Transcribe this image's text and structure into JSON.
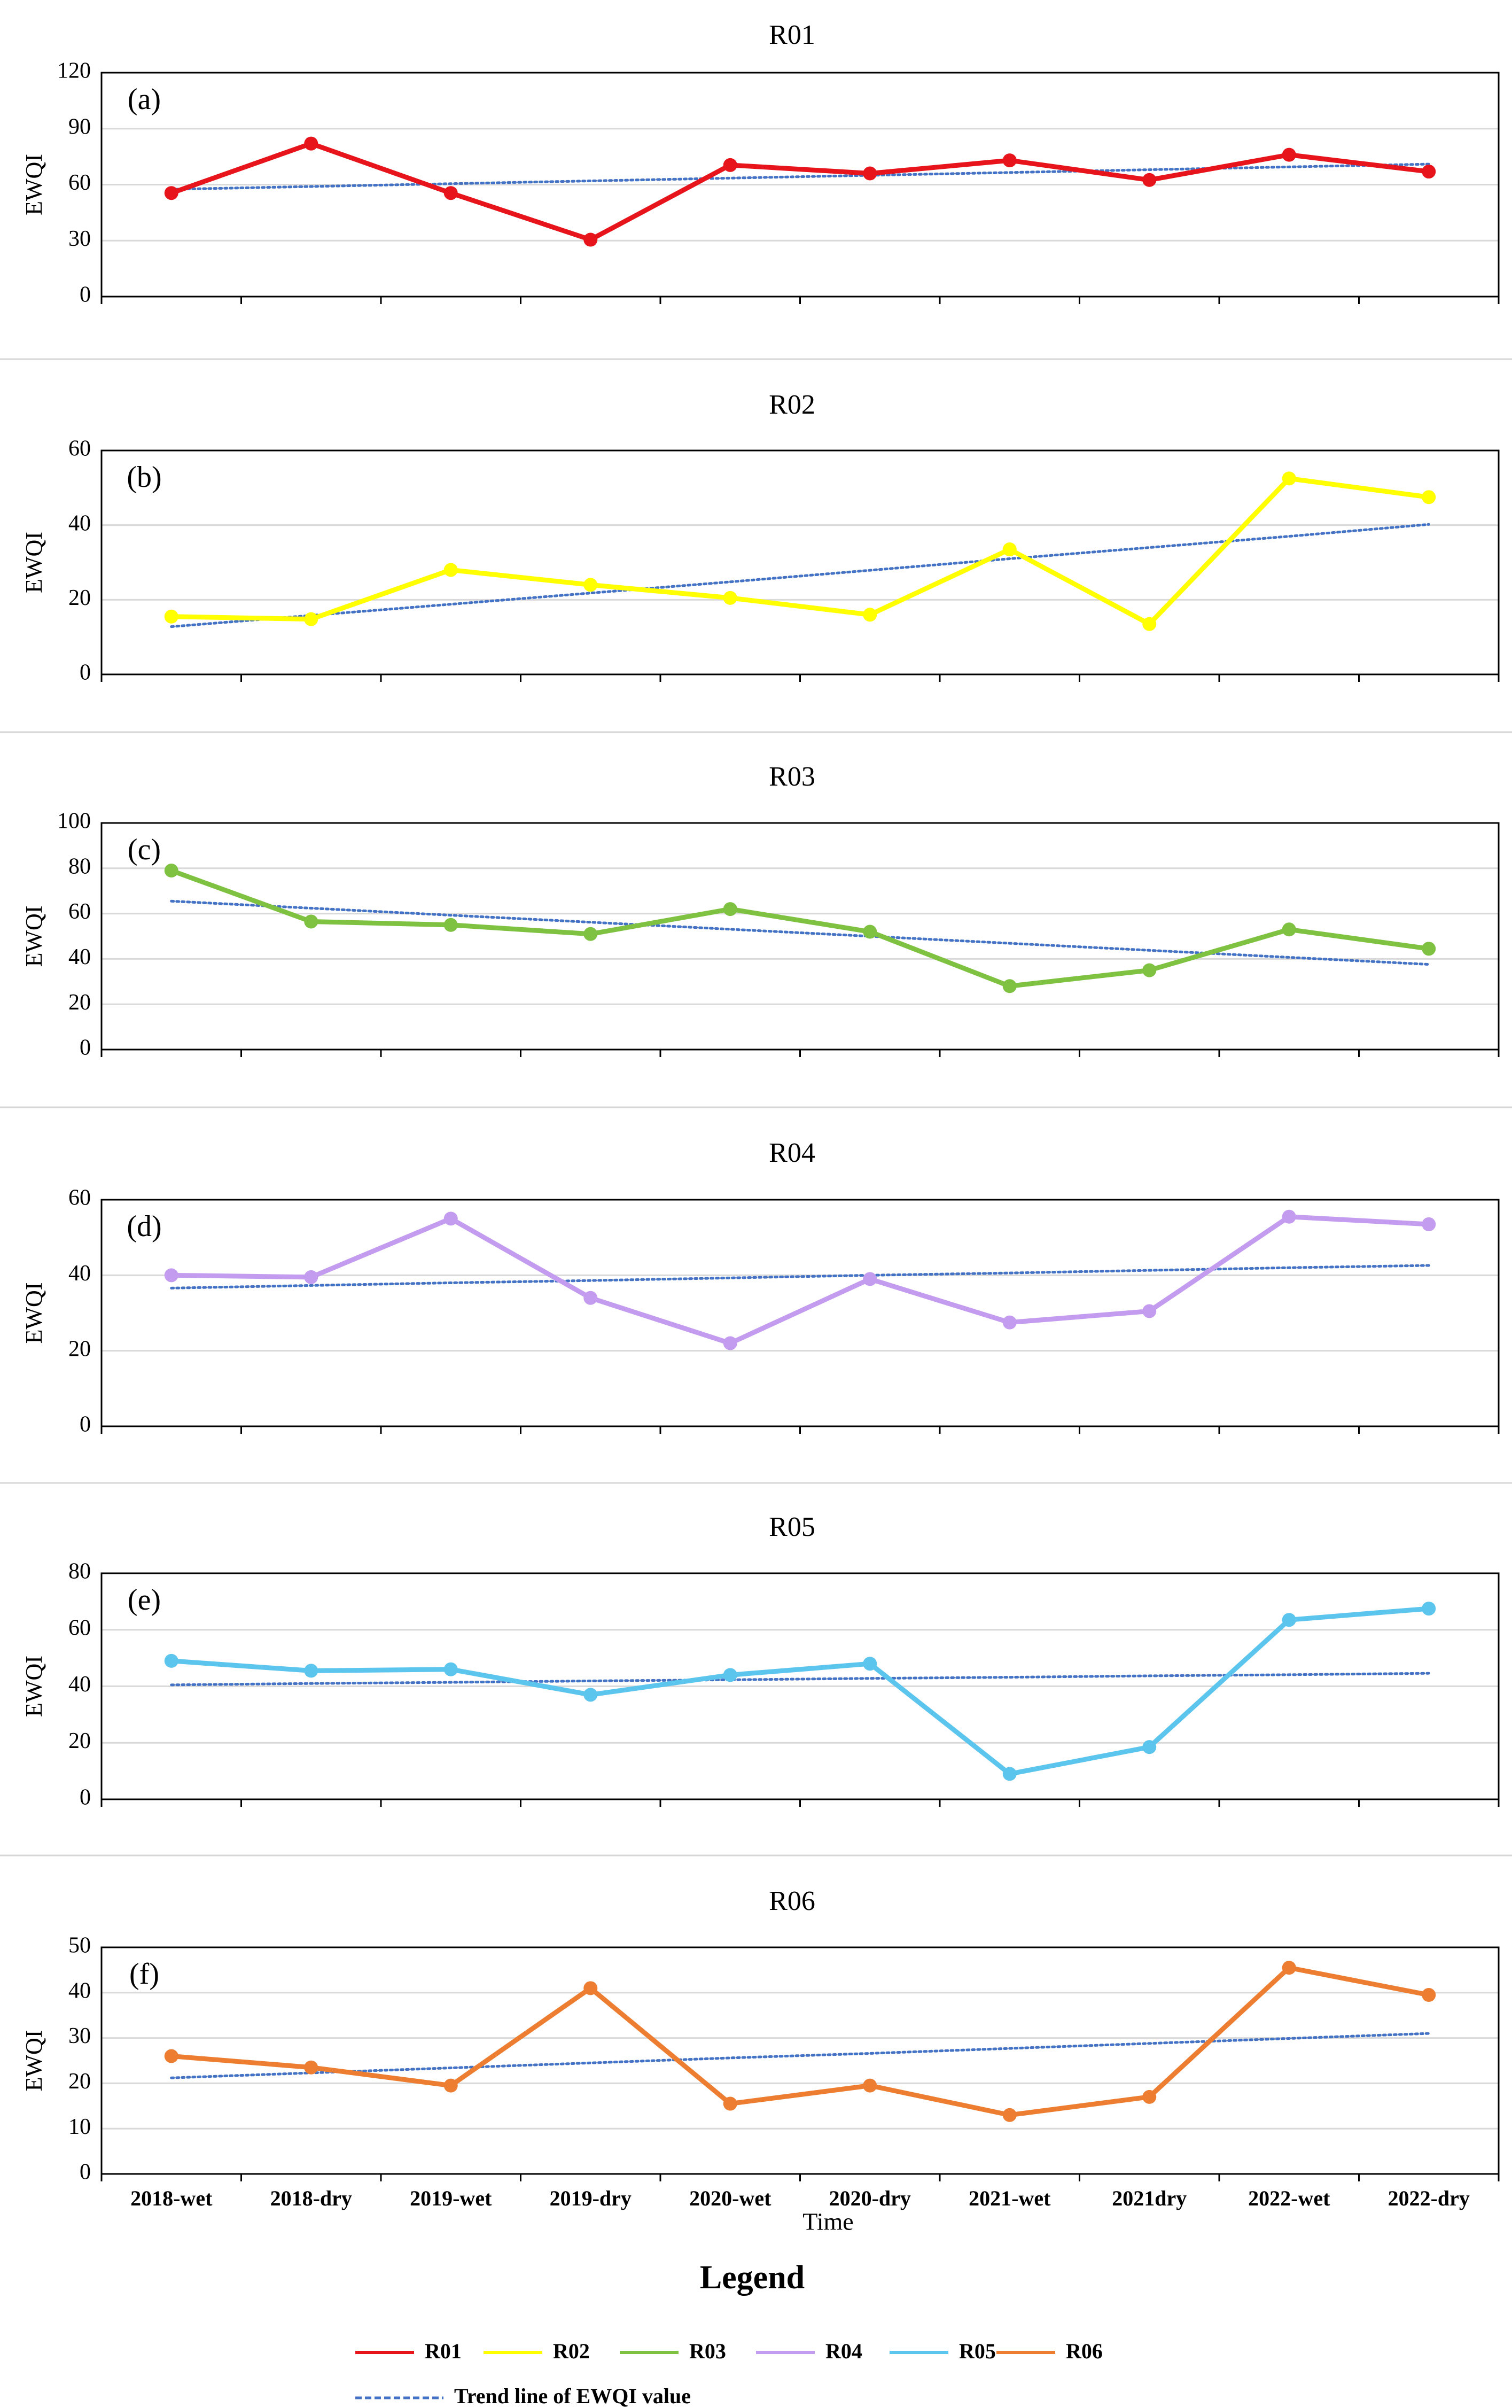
{
  "chart_data": [
    {
      "type": "line",
      "title": "R01",
      "panel_label": "(a)",
      "ylabel": "EWQI",
      "xlabel": "",
      "ylim": [
        0,
        120
      ],
      "yticks": [
        "0",
        "30",
        "60",
        "90",
        "120"
      ],
      "categories": [
        "2018-wet",
        "2018-dry",
        "2019-wet",
        "2019-dry",
        "2020-wet",
        "2020-dry",
        "2021-wet",
        "2021dry",
        "2022-wet",
        "2022-dry"
      ],
      "series": [
        {
          "name": "R01",
          "color": "#e8141b",
          "values": [
            55.5,
            82,
            55.5,
            30.5,
            70.5,
            66,
            73,
            62.5,
            76,
            67
          ]
        },
        {
          "name": "Trend line of EWQI value",
          "color": "#4472c4",
          "values": [
            57.5,
            59.0,
            60.5,
            62.0,
            63.5,
            65.0,
            66.5,
            68.0,
            69.5,
            71.0
          ]
        }
      ]
    },
    {
      "type": "line",
      "title": "R02",
      "panel_label": "(b)",
      "ylabel": "EWQI",
      "xlabel": "",
      "ylim": [
        0,
        60
      ],
      "yticks": [
        "0",
        "20",
        "40",
        "60"
      ],
      "categories": [
        "2018-wet",
        "2018-dry",
        "2019-wet",
        "2019-dry",
        "2020-wet",
        "2020-dry",
        "2021-wet",
        "2021dry",
        "2022-wet",
        "2022-dry"
      ],
      "series": [
        {
          "name": "R02",
          "color": "#ffff00",
          "values": [
            15.5,
            14.8,
            28,
            24,
            20.5,
            16,
            33.5,
            13.5,
            52.5,
            47.5
          ]
        },
        {
          "name": "Trend line of EWQI value",
          "color": "#4472c4",
          "values": [
            12.8,
            15.8,
            18.8,
            21.8,
            24.8,
            27.9,
            31.0,
            34.0,
            37.0,
            40.2
          ]
        }
      ]
    },
    {
      "type": "line",
      "title": "R03",
      "panel_label": "(c)",
      "ylabel": "EWQI",
      "xlabel": "",
      "ylim": [
        0,
        100
      ],
      "yticks": [
        "0",
        "20",
        "40",
        "60",
        "80",
        "100"
      ],
      "categories": [
        "2018-wet",
        "2018-dry",
        "2019-wet",
        "2019-dry",
        "2020-wet",
        "2020-dry",
        "2021-wet",
        "2021dry",
        "2022-wet",
        "2022-dry"
      ],
      "series": [
        {
          "name": "R03",
          "color": "#7fc242",
          "values": [
            79,
            56.5,
            55,
            51,
            62,
            52,
            28,
            35,
            53,
            44.5
          ]
        },
        {
          "name": "Trend line of EWQI value",
          "color": "#4472c4",
          "values": [
            65.5,
            62.4,
            59.3,
            56.2,
            53.1,
            50.0,
            46.9,
            43.8,
            40.7,
            37.6
          ]
        }
      ]
    },
    {
      "type": "line",
      "title": "R04",
      "panel_label": "(d)",
      "ylabel": "EWQI",
      "xlabel": "",
      "ylim": [
        0,
        60
      ],
      "yticks": [
        "0",
        "20",
        "40",
        "60"
      ],
      "categories": [
        "2018-wet",
        "2018-dry",
        "2019-wet",
        "2019-dry",
        "2020-wet",
        "2020-dry",
        "2021-wet",
        "2021dry",
        "2022-wet",
        "2022-dry"
      ],
      "series": [
        {
          "name": "R04",
          "color": "#c39cf0",
          "values": [
            40,
            39.5,
            55,
            34,
            22,
            39,
            27.5,
            30.5,
            55.5,
            53.5
          ]
        },
        {
          "name": "Trend line of EWQI value",
          "color": "#4472c4",
          "values": [
            36.6,
            37.3,
            38.0,
            38.6,
            39.3,
            40.0,
            40.6,
            41.3,
            42.0,
            42.6
          ]
        }
      ]
    },
    {
      "type": "line",
      "title": "R05",
      "panel_label": "(e)",
      "ylabel": "EWQI",
      "xlabel": "",
      "ylim": [
        0,
        80
      ],
      "yticks": [
        "0",
        "20",
        "40",
        "60",
        "80"
      ],
      "categories": [
        "2018-wet",
        "2018-dry",
        "2019-wet",
        "2019-dry",
        "2020-wet",
        "2020-dry",
        "2021-wet",
        "2021dry",
        "2022-wet",
        "2022-dry"
      ],
      "series": [
        {
          "name": "R05",
          "color": "#5bc5ee",
          "values": [
            49,
            45.5,
            46,
            37,
            44,
            48,
            9,
            18.5,
            63.5,
            67.5
          ]
        },
        {
          "name": "Trend line of EWQI value",
          "color": "#4472c4",
          "values": [
            40.5,
            41.0,
            41.4,
            41.9,
            42.3,
            42.8,
            43.2,
            43.7,
            44.1,
            44.6
          ]
        }
      ]
    },
    {
      "type": "line",
      "title": "R06",
      "panel_label": "(f)",
      "ylabel": "EWQI",
      "xlabel": "Time",
      "ylim": [
        0,
        50
      ],
      "yticks": [
        "0",
        "10",
        "20",
        "30",
        "40",
        "50"
      ],
      "categories": [
        "2018-wet",
        "2018-dry",
        "2019-wet",
        "2019-dry",
        "2020-wet",
        "2020-dry",
        "2021-wet",
        "2021dry",
        "2022-wet",
        "2022-dry"
      ],
      "series": [
        {
          "name": "R06",
          "color": "#ed7d31",
          "values": [
            26,
            23.5,
            19.5,
            41,
            15.5,
            19.5,
            13,
            17,
            45.5,
            39.5
          ]
        },
        {
          "name": "Trend line of EWQI value",
          "color": "#4472c4",
          "values": [
            21.2,
            22.3,
            23.4,
            24.5,
            25.6,
            26.6,
            27.7,
            28.8,
            29.9,
            31.0
          ]
        }
      ]
    }
  ],
  "legend": {
    "title": "Legend",
    "items": [
      {
        "label": "R01",
        "color": "#e8141b"
      },
      {
        "label": "R02",
        "color": "#ffff00"
      },
      {
        "label": "R03",
        "color": "#7fc242"
      },
      {
        "label": "R04",
        "color": "#c39cf0"
      },
      {
        "label": "R05",
        "color": "#5bc5ee"
      },
      {
        "label": "R06",
        "color": "#ed7d31"
      }
    ],
    "trend_label": "Trend line of EWQI value",
    "trend_color": "#4472c4"
  }
}
